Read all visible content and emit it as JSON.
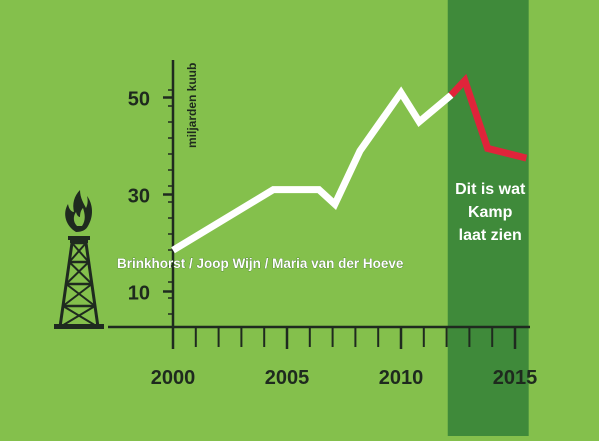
{
  "colors": {
    "background": "#84c04c",
    "highlight_band": "#3f8a3a",
    "axis": "#1f2a1f",
    "historic_line": "#ffffff",
    "projection_line": "#e0243a",
    "tick_text": "#1e2a1e",
    "annotation_text": "#ffffff",
    "credit_text": "#ffffff"
  },
  "icon": "gas-derrick-flame-icon",
  "chart_data": {
    "type": "line",
    "ylabel": "miljarden kuub",
    "xlim": [
      2000,
      2015.5
    ],
    "ylim": [
      8,
      58
    ],
    "xticks": [
      2000,
      2005,
      2010,
      2015
    ],
    "xtick_labels": [
      "2000",
      "2005",
      "2010",
      "2015"
    ],
    "yticks": [
      10,
      30,
      50
    ],
    "ytick_labels": [
      "10",
      "30",
      "50"
    ],
    "minor_xticks": [
      2001,
      2002,
      2003,
      2004,
      2006,
      2007,
      2008,
      2009,
      2011,
      2012,
      2013,
      2014
    ],
    "grid": false,
    "series": [
      {
        "x": [
          2000,
          2004.4,
          2006.4,
          2007.1,
          2008.2,
          2010,
          2010.8,
          2012.2
        ],
        "values": [
          18.5,
          31,
          31,
          28,
          39,
          51,
          45,
          50.5
        ]
      },
      {
        "x": [
          2012.2,
          2012.8,
          2013.8,
          2015.5
        ],
        "values": [
          50.5,
          53.5,
          39.5,
          37.5
        ]
      }
    ],
    "highlight_band": {
      "x_start": 2012.05,
      "x_end": 2015.6
    },
    "annotation": "Dit is wat\nKamp\nlaat zien"
  },
  "credit": "Brinkhorst / Joop Wijn / Maria van der Hoeve"
}
